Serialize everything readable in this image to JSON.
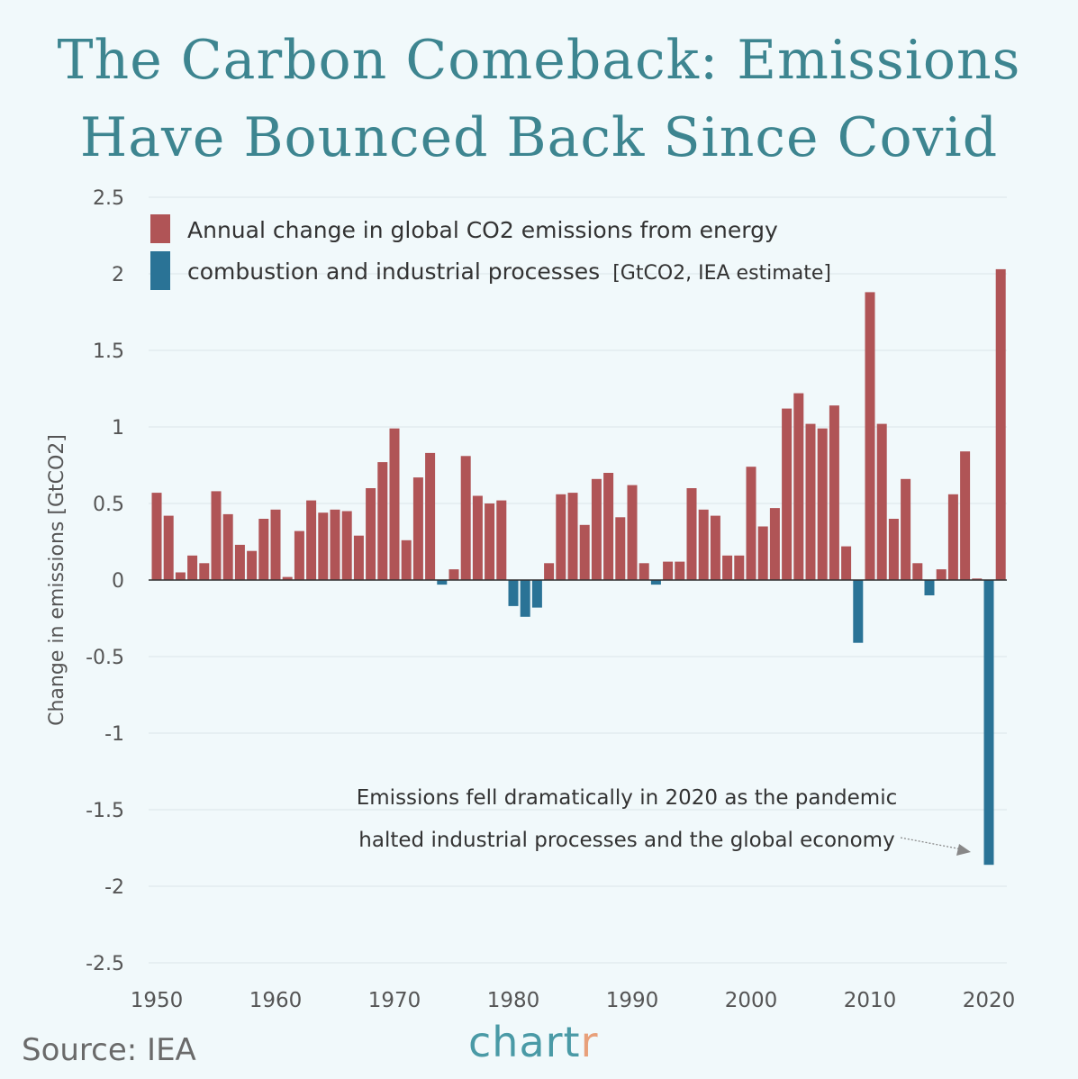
{
  "title_line1": "The Carbon Comeback: Emissions",
  "title_line2": "Have Bounced Back Since Covid",
  "source": "Source: IEA",
  "logo": "chartr",
  "colors": {
    "positive": "#b05456",
    "negative": "#2a7396",
    "title": "#3d8590",
    "background": "#f1f9fb"
  },
  "chart_data": {
    "type": "bar",
    "ylabel": "Change in emissions [GtCO2]",
    "ylim": [
      -2.5,
      2.5
    ],
    "yticks": [
      "2.5",
      "2",
      "1.5",
      "1",
      "0.5",
      "0",
      "-0.5",
      "-1",
      "-1.5",
      "-2",
      "-2.5"
    ],
    "xticks": [
      "1950",
      "1960",
      "1970",
      "1980",
      "1990",
      "2000",
      "2010",
      "2020"
    ],
    "grid": true,
    "legend": {
      "line1": "Annual change in global CO2 emissions from energy",
      "line2": "combustion and industrial processes",
      "unit": "[GtCO2, IEA estimate]",
      "placement": "top-left"
    },
    "annotation": {
      "line1": "Emissions fell dramatically in 2020 as the pandemic",
      "line2": "halted industrial processes and the global economy",
      "target_year": 2020
    },
    "x": [
      1950,
      1951,
      1952,
      1953,
      1954,
      1955,
      1956,
      1957,
      1958,
      1959,
      1960,
      1961,
      1962,
      1963,
      1964,
      1965,
      1966,
      1967,
      1968,
      1969,
      1970,
      1971,
      1972,
      1973,
      1974,
      1975,
      1976,
      1977,
      1978,
      1979,
      1980,
      1981,
      1982,
      1983,
      1984,
      1985,
      1986,
      1987,
      1988,
      1989,
      1990,
      1991,
      1992,
      1993,
      1994,
      1995,
      1996,
      1997,
      1998,
      1999,
      2000,
      2001,
      2002,
      2003,
      2004,
      2005,
      2006,
      2007,
      2008,
      2009,
      2010,
      2011,
      2012,
      2013,
      2014,
      2015,
      2016,
      2017,
      2018,
      2019,
      2020,
      2021
    ],
    "values": [
      0.57,
      0.42,
      0.05,
      0.16,
      0.11,
      0.58,
      0.43,
      0.23,
      0.19,
      0.4,
      0.46,
      0.02,
      0.32,
      0.52,
      0.44,
      0.46,
      0.45,
      0.29,
      0.6,
      0.77,
      0.99,
      0.26,
      0.67,
      0.83,
      -0.03,
      0.07,
      0.81,
      0.55,
      0.5,
      0.52,
      -0.17,
      -0.24,
      -0.18,
      0.11,
      0.56,
      0.57,
      0.36,
      0.66,
      0.7,
      0.41,
      0.62,
      0.11,
      -0.03,
      0.12,
      0.12,
      0.6,
      0.46,
      0.42,
      0.16,
      0.16,
      0.74,
      0.35,
      0.47,
      1.12,
      1.22,
      1.02,
      0.99,
      1.14,
      0.22,
      -0.41,
      1.88,
      1.02,
      0.4,
      0.66,
      0.11,
      -0.1,
      0.07,
      0.56,
      0.84,
      0.01,
      -1.86,
      2.03
    ]
  }
}
